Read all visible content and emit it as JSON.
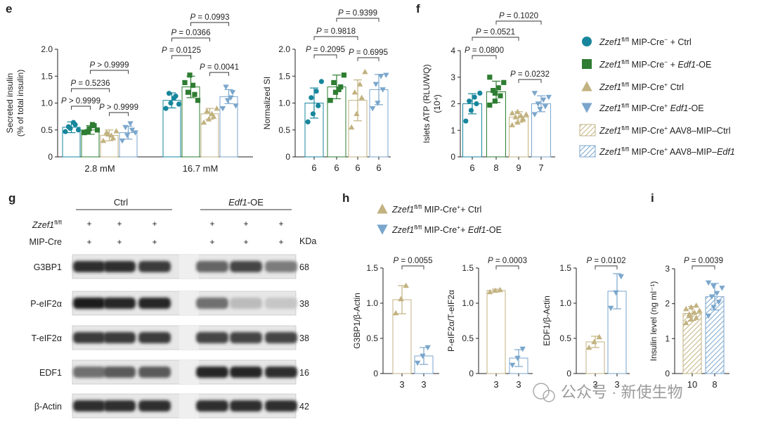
{
  "colors": {
    "teal": "#17869c",
    "green": "#2e7d32",
    "tan": "#c2b280",
    "blue": "#7aa6cc",
    "axis": "#222222"
  },
  "panel_labels": {
    "e": "e",
    "f": "f",
    "g": "g",
    "h": "h",
    "i": "i"
  },
  "legend": [
    {
      "marker": "circle",
      "color": "teal",
      "sup1": "fl/fl",
      "sup2": "−",
      "tail": "+ Ctrl",
      "tail_italic": ""
    },
    {
      "marker": "square",
      "color": "green",
      "sup1": "fl/fl",
      "sup2": "−",
      "tail": "+ ",
      "tail_italic": "Edf1",
      "tail2": "-OE"
    },
    {
      "marker": "triangle-up",
      "color": "tan",
      "sup1": "fl/fl",
      "sup2": "+",
      "tail": "Ctrl",
      "tail_italic": ""
    },
    {
      "marker": "triangle-down",
      "color": "blue",
      "sup1": "fl/fl",
      "sup2": "+",
      "tail": "",
      "tail_italic": "Edf1",
      "tail2": "-OE"
    },
    {
      "marker": "hatch",
      "color": "tan",
      "sup1": "fl/fl",
      "sup2": "+",
      "tail": " AAV8–MIP–Ctrl",
      "tail_italic": ""
    },
    {
      "marker": "hatch",
      "color": "blue",
      "sup1": "fl/fl",
      "sup2": "+",
      "tail": " AAV8–MIP–",
      "tail_italic": "Edf1"
    }
  ],
  "legend_gene": "Zzef1",
  "legend_mip": "MIP-Cre",
  "legend_h": [
    {
      "marker": "triangle-up",
      "color": "tan",
      "gene": "Zzef1",
      "sup": "fl/fl",
      "text": " MIP-Cre",
      "sup2": "+",
      "tail": "+ Ctrl",
      "tail_italic": "",
      "tail2": ""
    },
    {
      "marker": "triangle-down",
      "color": "blue",
      "gene": "Zzef1",
      "sup": "fl/fl",
      "text": " MIP-Cre",
      "sup2": "+",
      "tail": "+ ",
      "tail_italic": "Edf1",
      "tail2": "-OE"
    }
  ],
  "chart_data": [
    {
      "id": "e-insulin",
      "type": "bar",
      "ylabel": [
        "Secreted insulin",
        "(% of total insulin)"
      ],
      "ylim": [
        0,
        2.0
      ],
      "yticks": [
        "0",
        "0.5",
        "1.0",
        "1.5",
        "2.0"
      ],
      "categories": [
        "2.8 mM",
        "16.7 mM"
      ],
      "series": [
        {
          "color": "teal",
          "marker": "circle",
          "means": [
            0.55,
            1.05
          ],
          "sd": [
            0.1,
            0.14
          ],
          "points": [
            [
              0.47,
              0.53,
              0.6,
              0.56,
              0.64,
              0.5
            ],
            [
              0.9,
              1.0,
              1.13,
              1.18,
              1.09,
              0.98
            ]
          ]
        },
        {
          "color": "green",
          "marker": "square",
          "means": [
            0.5,
            1.3
          ],
          "sd": [
            0.08,
            0.2
          ],
          "points": [
            [
              0.45,
              0.52,
              0.58,
              0.47,
              0.6,
              0.5
            ],
            [
              1.38,
              1.52,
              1.16,
              1.2,
              1.33,
              1.05
            ]
          ]
        },
        {
          "color": "tan",
          "marker": "triangle-up",
          "means": [
            0.4,
            0.8
          ],
          "sd": [
            0.1,
            0.1
          ],
          "points": [
            [
              0.3,
              0.42,
              0.35,
              0.45,
              0.4,
              0.48
            ],
            [
              0.64,
              0.7,
              0.75,
              0.85,
              0.8,
              0.9
            ]
          ]
        },
        {
          "color": "blue",
          "marker": "triangle-down",
          "means": [
            0.45,
            1.12
          ],
          "sd": [
            0.12,
            0.13
          ],
          "points": [
            [
              0.3,
              0.4,
              0.5,
              0.55,
              0.62,
              0.45
            ],
            [
              0.9,
              1.05,
              1.2,
              1.3,
              1.1,
              0.95
            ]
          ]
        }
      ],
      "pvals": [
        "P > 0.9999",
        "P = 0.5236",
        "P > 0.9999",
        "P > 0.9999",
        "P = 0.0125",
        "P = 0.0366",
        "P = 0.0993",
        "P = 0.0041"
      ]
    },
    {
      "id": "e-si",
      "type": "bar",
      "ylabel": [
        "Normalized SI"
      ],
      "ylim": [
        0,
        2.0
      ],
      "yticks": [
        "0",
        "0.5",
        "1.0",
        "1.5",
        "2.0"
      ],
      "categories": [
        "6",
        "6",
        "6",
        "6"
      ],
      "series": [
        {
          "color": "teal",
          "marker": "circle",
          "mean": 1.0,
          "sd": 0.28,
          "points": [
            0.65,
            0.8,
            0.95,
            1.1,
            1.22,
            1.4
          ]
        },
        {
          "color": "green",
          "marker": "square",
          "mean": 1.3,
          "sd": 0.22,
          "points": [
            1.05,
            1.2,
            1.3,
            1.38,
            1.25,
            1.52
          ]
        },
        {
          "color": "tan",
          "marker": "triangle-up",
          "mean": 1.05,
          "sd": 0.38,
          "points": [
            0.55,
            0.8,
            1.1,
            1.2,
            1.35,
            1.58
          ]
        },
        {
          "color": "blue",
          "marker": "triangle-down",
          "mean": 1.25,
          "sd": 0.28,
          "points": [
            0.9,
            1.0,
            1.25,
            1.35,
            1.5,
            1.52
          ]
        }
      ],
      "pvals": [
        "P = 0.2095",
        "P = 0.9818",
        "P = 0.9399",
        "P = 0.6995"
      ]
    },
    {
      "id": "f-atp",
      "type": "bar",
      "ylabel": [
        "Islets ATP (RLU/WQ)",
        "(10⁴)"
      ],
      "ylim": [
        0,
        4
      ],
      "yticks": [
        "0",
        "1",
        "2",
        "3",
        "4"
      ],
      "categories": [
        "6",
        "8",
        "9",
        "7"
      ],
      "series": [
        {
          "color": "teal",
          "marker": "circle",
          "mean": 2.0,
          "sd": 0.38,
          "points": [
            1.35,
            1.75,
            2.0,
            2.1,
            2.25,
            2.4
          ]
        },
        {
          "color": "green",
          "marker": "square",
          "mean": 2.45,
          "sd": 0.4,
          "points": [
            1.95,
            2.1,
            2.3,
            2.5,
            2.6,
            2.8,
            3.0,
            2.4
          ]
        },
        {
          "color": "tan",
          "marker": "triangle-up",
          "mean": 1.5,
          "sd": 0.2,
          "points": [
            1.2,
            1.3,
            1.4,
            1.5,
            1.55,
            1.6,
            1.65,
            1.7,
            1.45
          ]
        },
        {
          "color": "blue",
          "marker": "triangle-down",
          "mean": 2.0,
          "sd": 0.3,
          "points": [
            1.6,
            1.8,
            1.9,
            2.0,
            2.15,
            2.25,
            2.4
          ]
        }
      ],
      "pvals": [
        "P = 0.0800",
        "P = 0.0521",
        "P = 0.1020",
        "P = 0.0232"
      ]
    },
    {
      "id": "h-g3bp1",
      "type": "bar",
      "ylabel": [
        "G3BP1/β-Actin"
      ],
      "ylim": [
        0,
        1.5
      ],
      "yticks": [
        "0",
        "0.5",
        "1.0",
        "1.5"
      ],
      "categories": [
        "3",
        "3"
      ],
      "series": [
        {
          "color": "tan",
          "marker": "triangle-up",
          "mean": 1.05,
          "sd": 0.2,
          "points": [
            0.86,
            1.06,
            1.25
          ]
        },
        {
          "color": "blue",
          "marker": "triangle-down",
          "mean": 0.25,
          "sd": 0.12,
          "points": [
            0.15,
            0.25,
            0.37
          ]
        }
      ],
      "pvals": [
        "P = 0.0055"
      ]
    },
    {
      "id": "h-peif2a",
      "type": "bar",
      "ylabel": [
        "P-eIF2α/T-eIF2α"
      ],
      "ylim": [
        0,
        1.5
      ],
      "yticks": [
        "0",
        "0.5",
        "1.0",
        "1.5"
      ],
      "categories": [
        "3",
        "3"
      ],
      "series": [
        {
          "color": "tan",
          "marker": "triangle-up",
          "mean": 1.18,
          "sd": 0.02,
          "points": [
            1.16,
            1.18,
            1.19
          ]
        },
        {
          "color": "blue",
          "marker": "triangle-down",
          "mean": 0.22,
          "sd": 0.12,
          "points": [
            0.12,
            0.22,
            0.35
          ]
        }
      ],
      "pvals": [
        "P = 0.0003"
      ]
    },
    {
      "id": "h-edf1",
      "type": "bar",
      "ylabel": [
        "EDF1/β-Actin"
      ],
      "ylim": [
        0,
        1.5
      ],
      "yticks": [
        "0",
        "0.5",
        "1.0",
        "1.5"
      ],
      "categories": [
        "3",
        "3"
      ],
      "series": [
        {
          "color": "tan",
          "marker": "triangle-up",
          "mean": 0.45,
          "sd": 0.08,
          "points": [
            0.37,
            0.45,
            0.52
          ]
        },
        {
          "color": "blue",
          "marker": "triangle-down",
          "mean": 1.17,
          "sd": 0.25,
          "points": [
            0.93,
            1.15,
            1.38
          ]
        }
      ],
      "pvals": [
        "P = 0.0102"
      ]
    },
    {
      "id": "i-insulin",
      "type": "bar",
      "ylabel": [
        "Insulin level (ng ml⁻¹)"
      ],
      "ylim": [
        0,
        3
      ],
      "yticks": [
        "0",
        "1",
        "2",
        "3"
      ],
      "categories": [
        "10",
        "8"
      ],
      "series": [
        {
          "color": "tan",
          "marker": "triangle-up",
          "hatch": true,
          "mean": 1.72,
          "sd": 0.2,
          "points": [
            1.45,
            1.55,
            1.6,
            1.7,
            1.75,
            1.8,
            1.85,
            1.9,
            1.95,
            1.65
          ]
        },
        {
          "color": "blue",
          "marker": "triangle-down",
          "hatch": true,
          "mean": 2.2,
          "sd": 0.38,
          "points": [
            1.65,
            1.9,
            2.05,
            2.2,
            2.3,
            2.45,
            2.6,
            2.5
          ]
        }
      ],
      "pvals": [
        "P = 0.0039"
      ]
    }
  ],
  "western": {
    "group1": "Ctrl",
    "group2_italic": "Edf1",
    "group2_tail": "-OE",
    "row_gene": "Zzef1",
    "row_gene_sup": "fl/fl",
    "row_mip": "MIP-Cre",
    "plus": "+",
    "kda": "KDa",
    "blots": [
      {
        "name": "G3BP1",
        "kda": "68",
        "intensity": [
          0.85,
          0.85,
          0.8,
          0.6,
          0.75,
          0.5
        ]
      },
      {
        "name": "P-eIF2α",
        "kda": "38",
        "intensity": [
          0.95,
          0.9,
          0.9,
          0.55,
          0.2,
          0.15
        ]
      },
      {
        "name": "T-eIF2α",
        "kda": "38",
        "intensity": [
          0.8,
          0.8,
          0.8,
          0.75,
          0.75,
          0.75
        ]
      },
      {
        "name": "EDF1",
        "kda": "16",
        "intensity": [
          0.55,
          0.65,
          0.65,
          0.9,
          0.9,
          0.85
        ]
      },
      {
        "name": "β-Actin",
        "kda": "42",
        "intensity": [
          0.85,
          0.85,
          0.85,
          0.85,
          0.85,
          0.85
        ]
      }
    ]
  },
  "watermark": "公众号 · 新使生物"
}
